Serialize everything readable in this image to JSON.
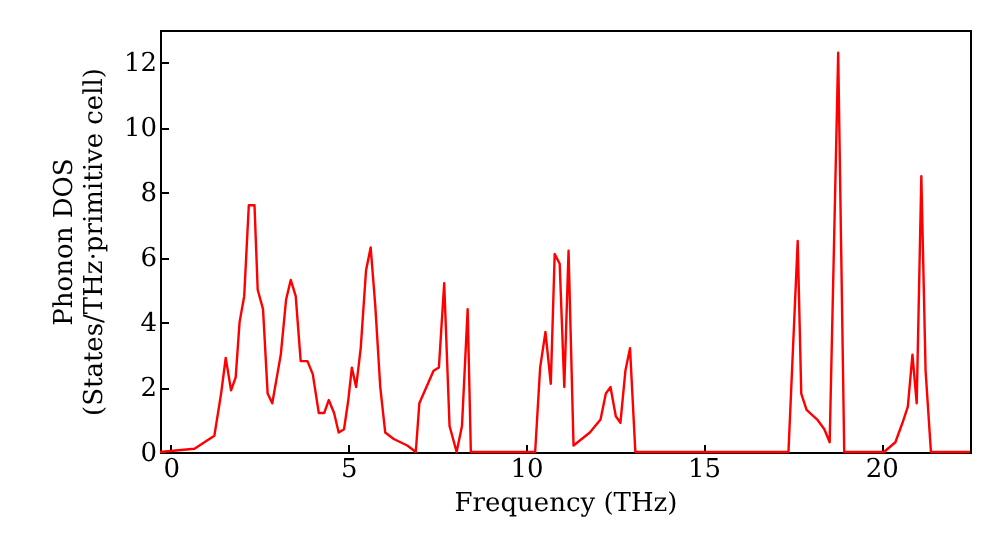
{
  "chart_data": {
    "type": "line",
    "xlabel": "Frequency (THz)",
    "ylabel": "Phonon DOS\n(States/THz·primitive cell)",
    "x": [
      -0.3,
      0.67,
      1.23,
      1.42,
      1.55,
      1.7,
      1.83,
      1.94,
      2.07,
      2.2,
      2.36,
      2.45,
      2.6,
      2.73,
      2.86,
      3.1,
      3.25,
      3.38,
      3.52,
      3.66,
      3.85,
      4.0,
      4.17,
      4.32,
      4.45,
      4.6,
      4.73,
      4.88,
      5.0,
      5.1,
      5.22,
      5.35,
      5.5,
      5.63,
      5.76,
      5.9,
      6.04,
      6.28,
      6.66,
      6.9,
      7.0,
      7.2,
      7.4,
      7.55,
      7.7,
      7.85,
      8.05,
      8.2,
      8.36,
      8.45,
      10.26,
      10.4,
      10.55,
      10.7,
      10.81,
      10.95,
      11.08,
      11.2,
      11.34,
      11.8,
      12.1,
      12.25,
      12.38,
      12.53,
      12.66,
      12.8,
      12.93,
      13.08,
      17.39,
      17.65,
      17.75,
      17.9,
      18.2,
      18.4,
      18.55,
      18.79,
      18.96,
      20.08,
      20.4,
      20.6,
      20.75,
      20.88,
      21.0,
      21.13,
      21.25,
      21.4,
      22.5
    ],
    "series": [
      {
        "color": "#ff0000",
        "values": [
          0.0,
          0.1,
          0.5,
          1.8,
          2.9,
          1.9,
          2.3,
          4.0,
          4.8,
          7.6,
          7.6,
          5.0,
          4.4,
          1.8,
          1.5,
          3.0,
          4.7,
          5.3,
          4.8,
          2.8,
          2.8,
          2.4,
          1.2,
          1.2,
          1.6,
          1.2,
          0.6,
          0.7,
          1.6,
          2.6,
          2.0,
          3.2,
          5.6,
          6.3,
          4.5,
          2.0,
          0.6,
          0.4,
          0.2,
          0.0,
          1.5,
          2.0,
          2.5,
          2.6,
          5.2,
          0.8,
          0.0,
          0.8,
          4.4,
          0.0,
          0.0,
          2.6,
          3.7,
          2.1,
          6.1,
          5.8,
          2.0,
          6.2,
          0.2,
          0.6,
          1.0,
          1.8,
          2.0,
          1.1,
          0.9,
          2.5,
          3.2,
          0.0,
          0.0,
          6.5,
          1.8,
          1.3,
          1.0,
          0.7,
          0.3,
          12.3,
          0.0,
          0.0,
          0.3,
          0.9,
          1.4,
          3.0,
          1.5,
          8.5,
          2.5,
          0.0,
          0.0
        ]
      }
    ],
    "xlim": [
      -0.3,
      22.5
    ],
    "ylim": [
      0,
      13
    ],
    "xticks": [
      0,
      5,
      10,
      15,
      20
    ],
    "yticks": [
      0,
      2,
      4,
      6,
      8,
      10,
      12
    ],
    "grid": false,
    "marker": "none",
    "line_style": "solid"
  }
}
